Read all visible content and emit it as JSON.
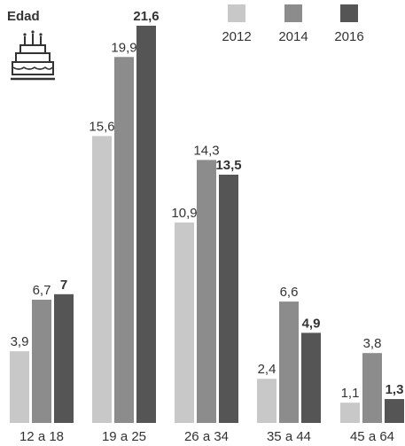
{
  "chart_data": {
    "type": "bar",
    "title": "Edad",
    "categories": [
      "12 a 18",
      "19 a 25",
      "26 a 34",
      "35 a 44",
      "45 a 64"
    ],
    "series": [
      {
        "name": "2012",
        "values": [
          3.9,
          15.6,
          10.9,
          2.4,
          1.1
        ],
        "labels": [
          "3,9",
          "15,6",
          "10,9",
          "2,4",
          "1,1"
        ],
        "color": "#c8c8c8"
      },
      {
        "name": "2014",
        "values": [
          6.7,
          19.9,
          14.3,
          6.6,
          3.8
        ],
        "labels": [
          "6,7",
          "19,9",
          "14,3",
          "6,6",
          "3,8"
        ],
        "color": "#8c8c8c"
      },
      {
        "name": "2016",
        "values": [
          7,
          21.6,
          13.5,
          4.9,
          1.3
        ],
        "labels": [
          "7",
          "21,6",
          "13,5",
          "4,9",
          "1,3"
        ],
        "color": "#555555",
        "bold_labels": true
      }
    ],
    "ylim": [
      0,
      21.6
    ],
    "grid": false,
    "legend_position": "top-right"
  },
  "icon": "birthday-cake-icon"
}
